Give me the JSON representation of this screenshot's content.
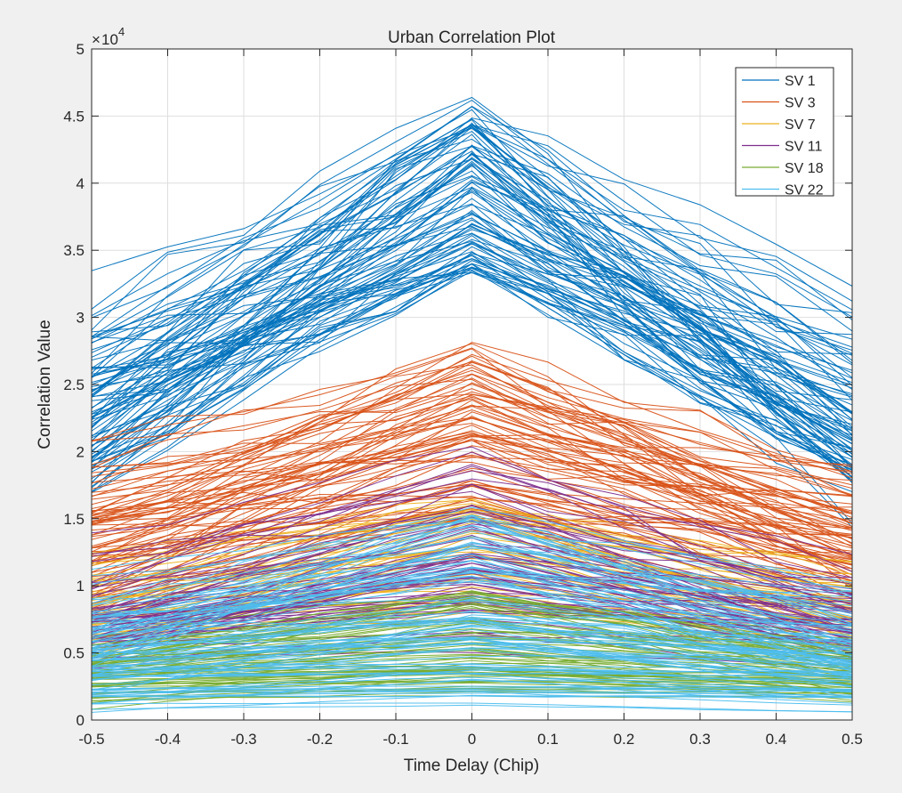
{
  "chart_data": {
    "type": "line",
    "title": "Urban Correlation Plot",
    "xlabel": "Time Delay (Chip)",
    "ylabel": "Correlation Value",
    "y_exponent_label": "10",
    "y_exponent": "4",
    "y_exponent_prefix": "×",
    "xlim": [
      -0.5,
      0.5
    ],
    "ylim": [
      0,
      50000
    ],
    "x": [
      -0.5,
      -0.4,
      -0.3,
      -0.2,
      -0.1,
      0,
      0.1,
      0.2,
      0.3,
      0.4,
      0.5
    ],
    "x_tick_labels": [
      "-0.5",
      "-0.4",
      "-0.3",
      "-0.2",
      "-0.1",
      "0",
      "0.1",
      "0.2",
      "0.3",
      "0.4",
      "0.5"
    ],
    "y_ticks": [
      0,
      5000,
      10000,
      15000,
      20000,
      25000,
      30000,
      35000,
      40000,
      45000,
      50000
    ],
    "y_tick_labels": [
      "0",
      "0.5",
      "1",
      "1.5",
      "2",
      "2.5",
      "3",
      "3.5",
      "4",
      "4.5",
      "5"
    ],
    "grid": true,
    "legend_position": "top-right",
    "series": [
      {
        "name": "SV 1",
        "color": "#0072BD",
        "peak_range": [
          33000,
          46500
        ],
        "edge_range": [
          15000,
          26500
        ],
        "count": 90
      },
      {
        "name": "SV 3",
        "color": "#D95319",
        "peak_range": [
          15000,
          28200
        ],
        "edge_range": [
          6000,
          20000
        ],
        "count": 75
      },
      {
        "name": "SV 7",
        "color": "#EDB120",
        "peak_range": [
          8000,
          16500
        ],
        "edge_range": [
          4000,
          13000
        ],
        "count": 45
      },
      {
        "name": "SV 11",
        "color": "#7E2F8E",
        "peak_range": [
          5000,
          20500
        ],
        "edge_range": [
          2500,
          11000
        ],
        "count": 60
      },
      {
        "name": "SV 18",
        "color": "#77AC30",
        "peak_range": [
          1500,
          10000
        ],
        "edge_range": [
          400,
          7000
        ],
        "count": 65
      },
      {
        "name": "SV 22",
        "color": "#4DBEEE",
        "peak_range": [
          1000,
          16000
        ],
        "edge_range": [
          0,
          9000
        ],
        "count": 95
      }
    ]
  }
}
